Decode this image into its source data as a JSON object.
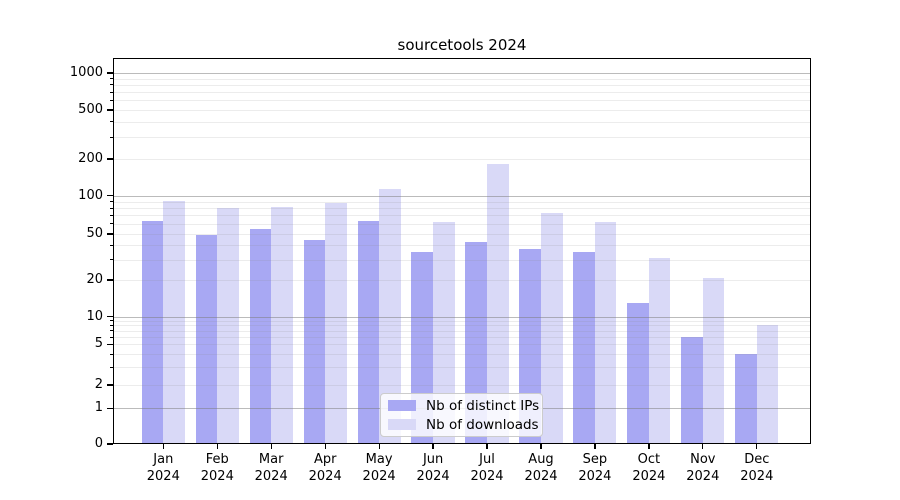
{
  "chart_data": {
    "type": "bar",
    "title": "sourcetools 2024",
    "x_categories_line1": [
      "Jan",
      "Feb",
      "Mar",
      "Apr",
      "May",
      "Jun",
      "Jul",
      "Aug",
      "Sep",
      "Oct",
      "Nov",
      "Dec"
    ],
    "x_categories_line2": "2024",
    "y_ticks": [
      0,
      1,
      2,
      5,
      10,
      20,
      50,
      100,
      200,
      500,
      1000
    ],
    "y_scale": "log above 1, linear 0-1",
    "ylim": [
      0,
      1400
    ],
    "grid": true,
    "legend": {
      "position": "lower-center",
      "entries": [
        "Nb of distinct IPs",
        "Nb of downloads"
      ]
    },
    "series": [
      {
        "name": "Nb of distinct IPs",
        "color": "#a8a8f3",
        "values": [
          63,
          49,
          55,
          44,
          63,
          35,
          43,
          37,
          35,
          13,
          6,
          4
        ]
      },
      {
        "name": "Nb of downloads",
        "color": "#d9d9f7",
        "values": [
          91,
          80,
          82,
          87,
          113,
          62,
          183,
          73,
          62,
          31,
          21,
          8
        ]
      }
    ]
  }
}
